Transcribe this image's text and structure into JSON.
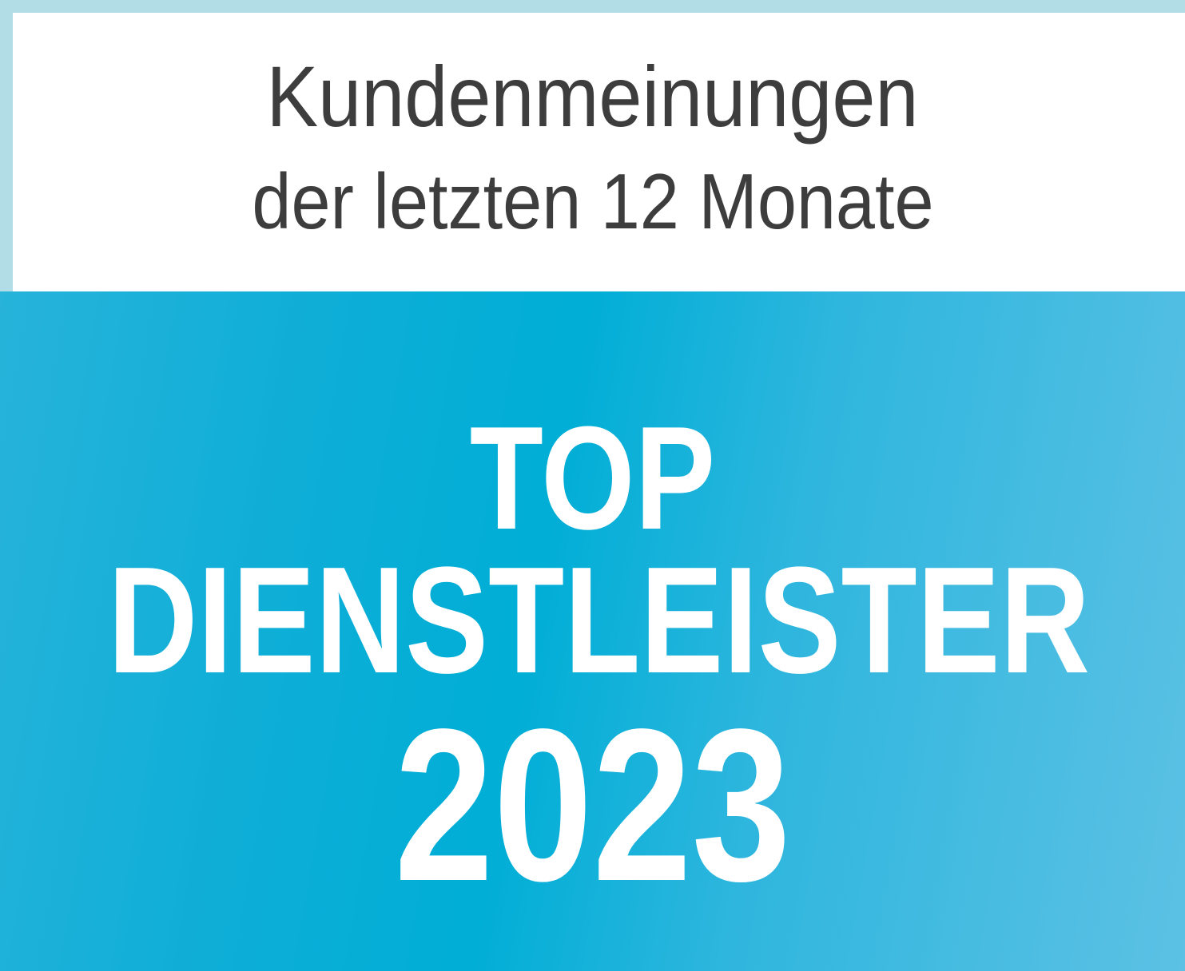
{
  "header": {
    "line1": "Kundenmeinungen",
    "line2": "der letzten 12 Monate"
  },
  "award": {
    "line1": "TOP",
    "line2": "DIENSTLEISTER",
    "year": "2023"
  },
  "colors": {
    "border": "#b2dde6",
    "panel_blue": "#00aed6",
    "text_dark": "#3d3d3d"
  }
}
